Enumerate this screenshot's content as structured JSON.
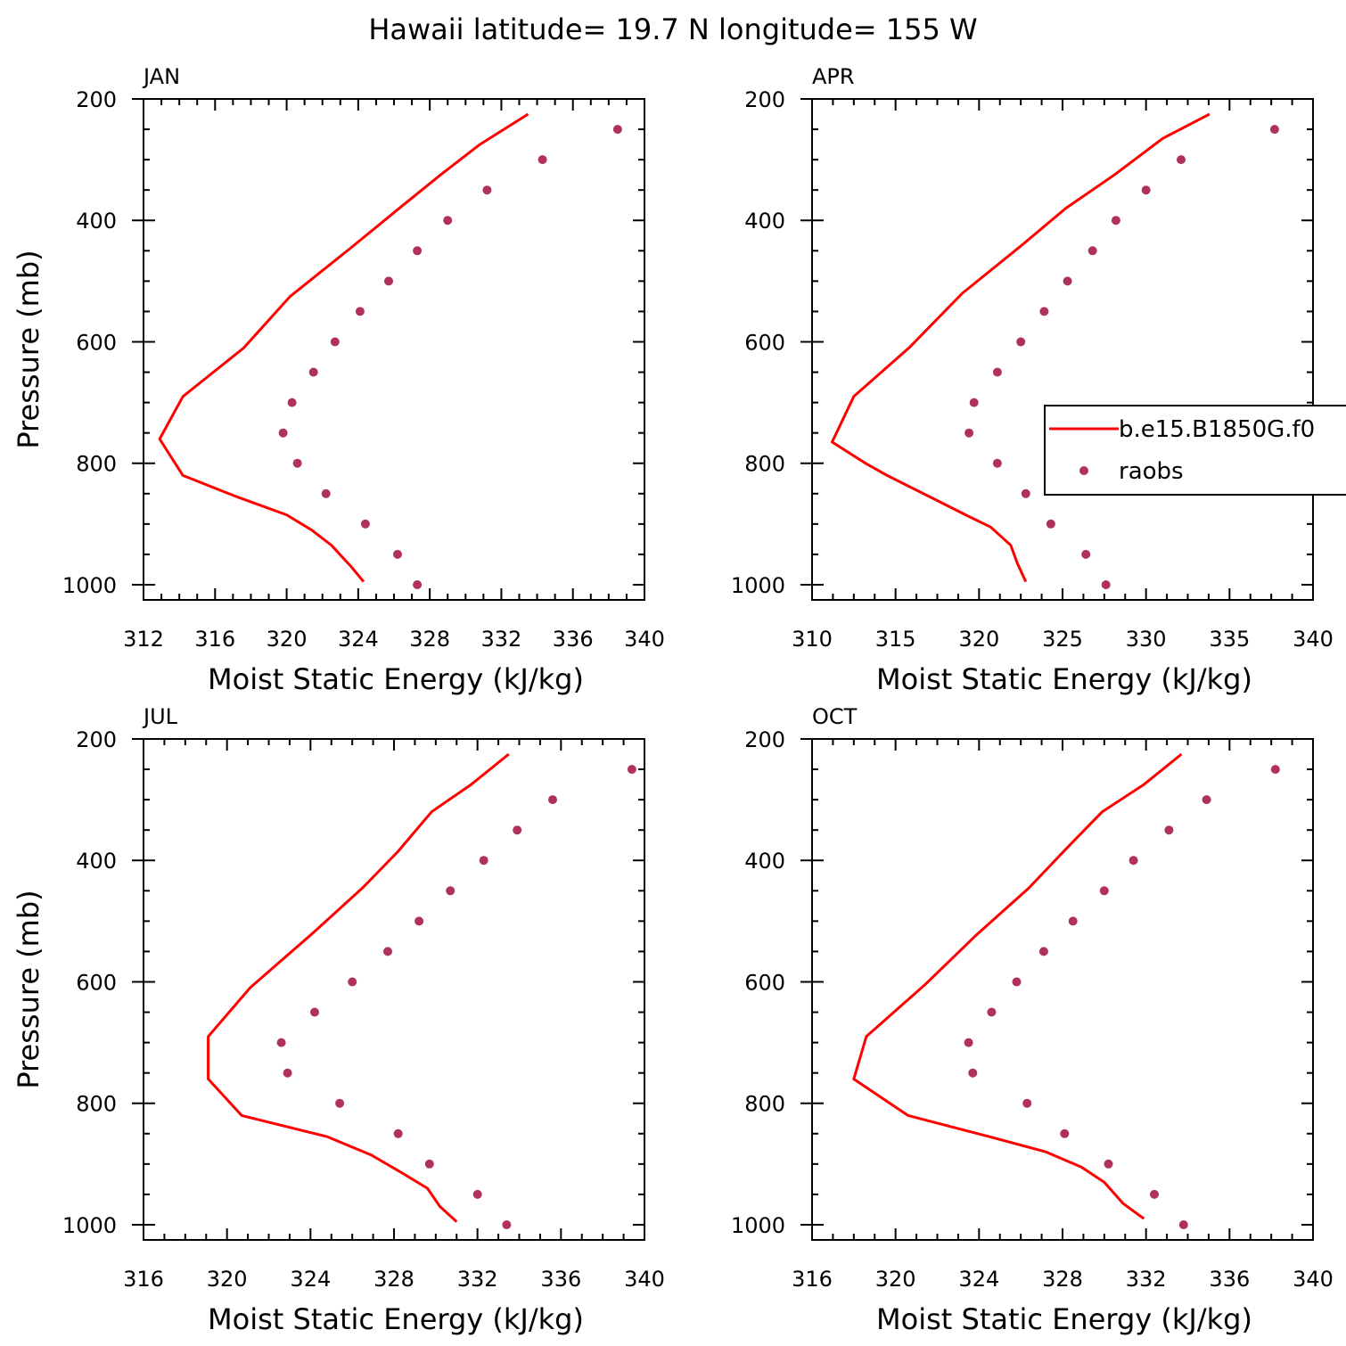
{
  "figure_title": "Hawaii  latitude= 19.7 N longitude= 155 W",
  "colors": {
    "model": "#ff0000",
    "obs": "#b03060",
    "axes": "#000000"
  },
  "legend": {
    "model_label": "b.e15.B1850G.f0",
    "obs_label": "raobs",
    "placement": "right side of APR panel (clipped at figure edge)"
  },
  "chart_data": [
    {
      "type": "line",
      "title": "JAN",
      "xlabel": "Moist Static Energy (kJ/kg)",
      "ylabel": "Pressure (mb)",
      "xlim": [
        312,
        340
      ],
      "ylim": [
        200,
        1025
      ],
      "y_inverted": true,
      "xticks": [
        "312",
        "316",
        "320",
        "324",
        "328",
        "332",
        "336",
        "340"
      ],
      "yticks": [
        "200",
        "400",
        "600",
        "800",
        "1000"
      ],
      "series": [
        {
          "name": "b.e15.B1850G.f0",
          "style": "line",
          "x": [
            333.5,
            330.8,
            328.6,
            326.3,
            323.6,
            320.2,
            317.6,
            314.2,
            312.9,
            314.2,
            317.2,
            320.0,
            321.4,
            322.5,
            323.6,
            324.3
          ],
          "y": [
            225,
            275,
            325,
            380,
            445,
            525,
            610,
            690,
            760,
            820,
            855,
            885,
            910,
            935,
            970,
            995
          ]
        },
        {
          "name": "raobs",
          "style": "markers",
          "x": [
            338.5,
            334.3,
            331.2,
            329.0,
            327.3,
            325.7,
            324.1,
            322.7,
            321.5,
            320.3,
            319.8,
            320.6,
            322.2,
            324.4,
            326.2,
            327.3
          ],
          "y": [
            250,
            300,
            350,
            400,
            450,
            500,
            550,
            600,
            650,
            700,
            750,
            800,
            850,
            900,
            950,
            1000
          ]
        }
      ]
    },
    {
      "type": "line",
      "title": "APR",
      "xlabel": "Moist Static Energy (kJ/kg)",
      "ylabel": "",
      "xlim": [
        310,
        340
      ],
      "ylim": [
        200,
        1025
      ],
      "y_inverted": true,
      "xticks": [
        "310",
        "315",
        "320",
        "325",
        "330",
        "335",
        "340"
      ],
      "yticks": [
        "200",
        "400",
        "600",
        "800",
        "1000"
      ],
      "series": [
        {
          "name": "b.e15.B1850G.f0",
          "style": "line",
          "x": [
            333.8,
            331.0,
            328.1,
            325.2,
            322.6,
            319.0,
            315.8,
            312.5,
            311.2,
            313.2,
            314.5,
            317.4,
            319.2,
            320.7,
            321.9,
            322.3,
            322.8
          ],
          "y": [
            225,
            265,
            325,
            380,
            440,
            520,
            610,
            690,
            765,
            800,
            820,
            860,
            885,
            905,
            935,
            965,
            995
          ]
        },
        {
          "name": "raobs",
          "style": "markers",
          "x": [
            337.7,
            332.1,
            330.0,
            328.2,
            326.8,
            325.3,
            323.9,
            322.5,
            321.1,
            319.7,
            319.4,
            321.1,
            322.8,
            324.3,
            326.4,
            327.6
          ],
          "y": [
            250,
            300,
            350,
            400,
            450,
            500,
            550,
            600,
            650,
            700,
            750,
            800,
            850,
            900,
            950,
            1000
          ]
        }
      ]
    },
    {
      "type": "line",
      "title": "JUL",
      "xlabel": "Moist Static Energy (kJ/kg)",
      "ylabel": "Pressure (mb)",
      "xlim": [
        316,
        340
      ],
      "ylim": [
        200,
        1025
      ],
      "y_inverted": true,
      "xticks": [
        "316",
        "320",
        "324",
        "328",
        "332",
        "336",
        "340"
      ],
      "yticks": [
        "200",
        "400",
        "600",
        "800",
        "1000"
      ],
      "series": [
        {
          "name": "b.e15.B1850G.f0",
          "style": "line",
          "x": [
            333.5,
            331.7,
            329.8,
            328.2,
            326.5,
            324.1,
            321.1,
            319.1,
            319.1,
            320.7,
            324.8,
            326.9,
            328.4,
            329.6,
            330.2,
            331.0
          ],
          "y": [
            225,
            275,
            320,
            385,
            445,
            520,
            610,
            690,
            760,
            820,
            855,
            885,
            915,
            940,
            970,
            995
          ]
        },
        {
          "name": "raobs",
          "style": "markers",
          "x": [
            339.4,
            335.6,
            333.9,
            332.3,
            330.7,
            329.2,
            327.7,
            326.0,
            324.2,
            322.6,
            322.9,
            325.4,
            328.2,
            329.7,
            332.0,
            333.4
          ],
          "y": [
            250,
            300,
            350,
            400,
            450,
            500,
            550,
            600,
            650,
            700,
            750,
            800,
            850,
            900,
            950,
            1000
          ]
        }
      ]
    },
    {
      "type": "line",
      "title": "OCT",
      "xlabel": "Moist Static Energy (kJ/kg)",
      "ylabel": "",
      "xlim": [
        316,
        340
      ],
      "ylim": [
        200,
        1025
      ],
      "y_inverted": true,
      "xticks": [
        "316",
        "320",
        "324",
        "328",
        "332",
        "336",
        "340"
      ],
      "yticks": [
        "200",
        "400",
        "600",
        "800",
        "1000"
      ],
      "series": [
        {
          "name": "b.e15.B1850G.f0",
          "style": "line",
          "x": [
            333.7,
            331.9,
            329.9,
            328.2,
            326.4,
            323.8,
            321.4,
            318.6,
            318.0,
            320.6,
            324.5,
            327.2,
            328.9,
            330.0,
            330.9,
            331.9
          ],
          "y": [
            225,
            275,
            320,
            380,
            445,
            525,
            605,
            690,
            760,
            820,
            855,
            880,
            905,
            930,
            965,
            990
          ]
        },
        {
          "name": "raobs",
          "style": "markers",
          "x": [
            338.2,
            334.9,
            333.1,
            331.4,
            330.0,
            328.5,
            327.1,
            325.8,
            324.6,
            323.5,
            323.7,
            326.3,
            328.1,
            330.2,
            332.4,
            333.8
          ],
          "y": [
            250,
            300,
            350,
            400,
            450,
            500,
            550,
            600,
            650,
            700,
            750,
            800,
            850,
            900,
            950,
            1000
          ]
        }
      ]
    }
  ]
}
